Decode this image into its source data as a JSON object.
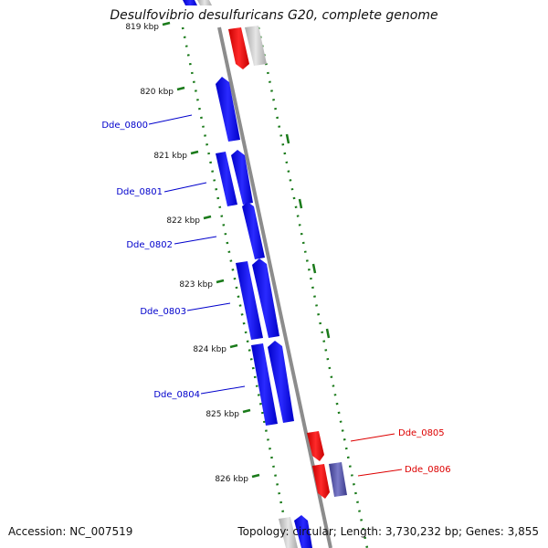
{
  "title": "Desulfovibrio desulfuricans G20, complete genome",
  "accession": "Accession: NC_007519",
  "summary": "Topology: circular; Length: 3,730,232 bp; Genes: 3,855",
  "colors": {
    "backbone": "#8c8c8c",
    "ruler": "#1a7a1a",
    "forward_gene": "#0000ee",
    "reverse_gene": "#ee0000",
    "gray_gene": "#bdbdbd",
    "purple_gene": "#4b4b9e",
    "forward_label": "#0000cc",
    "reverse_label": "#dd0000"
  },
  "ticks": [
    {
      "kbp": 819,
      "label": "819 kbp"
    },
    {
      "kbp": 820,
      "label": "820 kbp"
    },
    {
      "kbp": 821,
      "label": "821 kbp"
    },
    {
      "kbp": 822,
      "label": "822 kbp"
    },
    {
      "kbp": 823,
      "label": "823 kbp"
    },
    {
      "kbp": 824,
      "label": "824 kbp"
    },
    {
      "kbp": 825,
      "label": "825 kbp"
    },
    {
      "kbp": 826,
      "label": "826 kbp"
    }
  ],
  "labels": [
    {
      "text": "Dde_0800",
      "strand": "forward"
    },
    {
      "text": "Dde_0801",
      "strand": "forward"
    },
    {
      "text": "Dde_0802",
      "strand": "forward"
    },
    {
      "text": "Dde_0803",
      "strand": "forward"
    },
    {
      "text": "Dde_0804",
      "strand": "forward"
    },
    {
      "text": "Dde_0805",
      "strand": "reverse"
    },
    {
      "text": "Dde_0806",
      "strand": "reverse"
    }
  ]
}
